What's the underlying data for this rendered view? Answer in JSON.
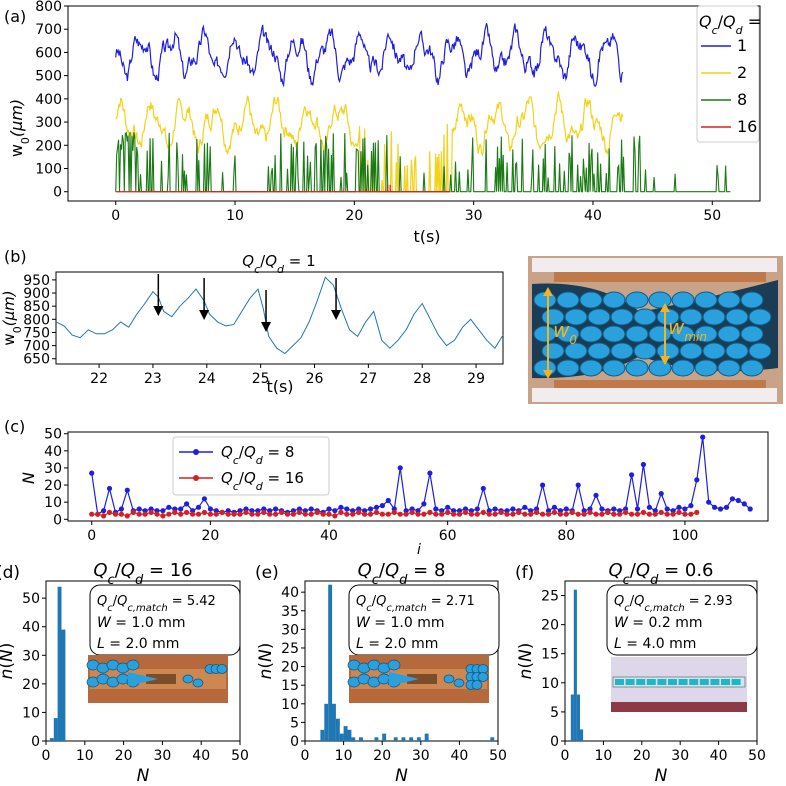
{
  "colors": {
    "blue": "#1f1fe0",
    "yellow": "#f2d21a",
    "green": "#1a7a14",
    "red": "#d62020",
    "mpl": "#1f77b4",
    "arrow_w": "#f3b323"
  },
  "chart_data": [
    {
      "id": "a",
      "panel_label": "(a)",
      "type": "line",
      "xlabel": "t(s)",
      "ylabel": "w0(μm)",
      "ylabel_main": "w",
      "ylabel_sub": "0",
      "ylabel_rest": "(μm)",
      "xlim": [
        -4,
        54
      ],
      "ylim": [
        -40,
        800
      ],
      "xticks": [
        0,
        10,
        20,
        30,
        40,
        50
      ],
      "yticks": [
        0,
        100,
        200,
        300,
        400,
        500,
        600,
        700,
        800
      ],
      "legend": {
        "title": "Qc/Qd =",
        "position": "top-right",
        "entries": [
          "1",
          "2",
          "8",
          "16"
        ]
      },
      "series": [
        {
          "name": "1",
          "color": "#1f1fe0",
          "t_start": 0,
          "t_end": 42.5,
          "base": 590,
          "amp": 105,
          "min": 380,
          "max": 775,
          "seed": 3
        },
        {
          "name": "2",
          "color": "#f2d21a",
          "t_start": 0,
          "t_end": 42.5,
          "base": 290,
          "amp": 110,
          "min": 0,
          "max": 520,
          "seed": 7,
          "gaps": [
            [
              20.5,
              28.2
            ]
          ]
        },
        {
          "name": "8",
          "color": "#1a7a14",
          "t_start": 0,
          "t_end": 51.5,
          "base": 0,
          "spikes": true,
          "seed": 11
        },
        {
          "name": "16",
          "color": "#d62020",
          "t_start": 0,
          "t_end": 28,
          "base": 0,
          "spikes_at": [
            22.8,
            23.0
          ]
        }
      ]
    },
    {
      "id": "b",
      "panel_label": "(b)",
      "type": "line",
      "title": "Qc/Qd = 1",
      "xlabel": "t(s)",
      "ylabel": "w0(μm)",
      "xlim": [
        21.2,
        29.5
      ],
      "ylim": [
        630,
        980
      ],
      "xticks": [
        22,
        23,
        24,
        25,
        26,
        27,
        28,
        29
      ],
      "yticks": [
        650,
        700,
        750,
        800,
        850,
        900,
        950
      ],
      "arrows_at": [
        23.1,
        23.95,
        25.1,
        26.4
      ],
      "inset_labels": [
        "w0",
        "wmin"
      ],
      "x": [
        21.2,
        21.35,
        21.5,
        21.65,
        21.8,
        21.95,
        22.1,
        22.25,
        22.4,
        22.55,
        22.7,
        22.85,
        23.0,
        23.1,
        23.2,
        23.35,
        23.5,
        23.65,
        23.8,
        23.95,
        24.05,
        24.2,
        24.35,
        24.5,
        24.65,
        24.8,
        24.95,
        25.05,
        25.15,
        25.3,
        25.45,
        25.6,
        25.75,
        25.9,
        26.05,
        26.2,
        26.35,
        26.5,
        26.65,
        26.8,
        26.95,
        27.1,
        27.25,
        27.4,
        27.55,
        27.7,
        27.85,
        28.0,
        28.15,
        28.3,
        28.45,
        28.6,
        28.75,
        28.9,
        29.05,
        29.2,
        29.35,
        29.5
      ],
      "y": [
        790,
        775,
        740,
        730,
        760,
        745,
        745,
        760,
        790,
        770,
        820,
        860,
        905,
        885,
        830,
        810,
        850,
        880,
        915,
        870,
        820,
        790,
        775,
        780,
        830,
        880,
        915,
        840,
        735,
        690,
        670,
        700,
        730,
        790,
        870,
        960,
        930,
        840,
        760,
        735,
        790,
        830,
        720,
        690,
        720,
        760,
        820,
        860,
        800,
        740,
        700,
        720,
        770,
        800,
        760,
        720,
        690,
        740
      ]
    },
    {
      "id": "c",
      "panel_label": "(c)",
      "type": "line",
      "xlabel": "i",
      "ylabel": "N",
      "xlim": [
        -4,
        114
      ],
      "ylim": [
        -1,
        51
      ],
      "xticks": [
        0,
        20,
        40,
        60,
        80,
        100
      ],
      "yticks": [
        0,
        10,
        20,
        30,
        40,
        50
      ],
      "legend": {
        "position": "upper-left",
        "entries": [
          "Qc/Qd = 8",
          "Qc/Qd = 16"
        ]
      },
      "series": [
        {
          "name": "Qc/Qd = 8",
          "color": "#1f1fe0",
          "values": [
            27,
            3,
            5,
            18,
            4,
            6,
            17,
            5,
            6,
            5,
            6,
            5,
            5,
            7,
            6,
            6,
            9,
            5,
            7,
            12,
            6,
            5,
            4,
            5,
            4,
            5,
            6,
            5,
            5,
            6,
            5,
            6,
            5,
            4,
            5,
            6,
            5,
            6,
            5,
            4,
            6,
            5,
            7,
            6,
            5,
            6,
            5,
            6,
            7,
            8,
            11,
            6,
            30,
            5,
            6,
            5,
            9,
            27,
            6,
            5,
            7,
            5,
            5,
            6,
            5,
            6,
            18,
            5,
            6,
            5,
            5,
            6,
            5,
            7,
            5,
            6,
            20,
            5,
            7,
            5,
            6,
            5,
            20,
            5,
            6,
            14,
            6,
            5,
            6,
            5,
            6,
            26,
            6,
            32,
            7,
            5,
            15,
            6,
            5,
            7,
            6,
            8,
            23,
            48,
            10,
            7,
            6,
            7,
            12,
            11,
            9,
            6
          ]
        },
        {
          "name": "Qc/Qd = 16",
          "color": "#d62020",
          "values": [
            3,
            3,
            2,
            4,
            3,
            3,
            2,
            4,
            3,
            3,
            4,
            3,
            2,
            3,
            4,
            3,
            4,
            3,
            3,
            4,
            3,
            3,
            4,
            3,
            3,
            3,
            4,
            3,
            3,
            4,
            3,
            3,
            4,
            3,
            3,
            4,
            3,
            3,
            4,
            3,
            3,
            2,
            4,
            3,
            3,
            4,
            3,
            3,
            4,
            3,
            3,
            4,
            3,
            3,
            4,
            3,
            3,
            4,
            3,
            3,
            4,
            3,
            3,
            4,
            3,
            3,
            4,
            3,
            3,
            4,
            3,
            3,
            4,
            3,
            3,
            4,
            3,
            3,
            4,
            3,
            3,
            4,
            3,
            3,
            4,
            3,
            3,
            4,
            3,
            3,
            4,
            3,
            3,
            4,
            3,
            3,
            4,
            3,
            3,
            4,
            3,
            3,
            4
          ]
        }
      ]
    },
    {
      "id": "d",
      "panel_label": "(d)",
      "type": "bar",
      "title": "Qc/Qd = 16",
      "xlabel": "N",
      "ylabel": "n(N)",
      "xlim": [
        0,
        50
      ],
      "ylim": [
        0,
        56
      ],
      "xticks": [
        0,
        10,
        20,
        30,
        40,
        50
      ],
      "yticks": [
        0,
        10,
        20,
        30,
        40,
        50
      ],
      "bin_width": 1,
      "bins": [
        1,
        2,
        3,
        4
      ],
      "values": [
        1,
        8,
        54,
        39
      ],
      "textbox": [
        "Qc/Qc,match = 5.42",
        "W = 1.0 mm",
        "L = 2.0 mm"
      ],
      "color": "#1f77b4"
    },
    {
      "id": "e",
      "panel_label": "(e)",
      "type": "bar",
      "title": "Qc/Qd = 8",
      "xlabel": "N",
      "ylabel": "n(N)",
      "xlim": [
        0,
        50
      ],
      "ylim": [
        0,
        43
      ],
      "xticks": [
        0,
        10,
        20,
        30,
        40,
        50
      ],
      "yticks": [
        0,
        5,
        10,
        15,
        20,
        25,
        30,
        35,
        40
      ],
      "bin_width": 1,
      "bins": [
        4,
        5,
        6,
        7,
        8,
        9,
        10,
        11,
        12,
        14,
        18,
        20,
        23,
        25,
        27,
        29,
        31,
        48
      ],
      "values": [
        3,
        10,
        42,
        10,
        6,
        2,
        4,
        3,
        1,
        1,
        1,
        2,
        1,
        1,
        1,
        1,
        2,
        1
      ],
      "textbox": [
        "Qc/Qc,match = 2.71",
        "W = 1.0 mm",
        "L = 2.0 mm"
      ],
      "color": "#1f77b4"
    },
    {
      "id": "f",
      "panel_label": "(f)",
      "type": "bar",
      "title": "Qc/Qd = 0.6",
      "xlabel": "N",
      "ylabel": "n(N)",
      "xlim": [
        0,
        50
      ],
      "ylim": [
        0,
        27.5
      ],
      "xticks": [
        0,
        10,
        20,
        30,
        40,
        50
      ],
      "yticks": [
        0,
        5,
        10,
        15,
        20,
        25
      ],
      "bin_width": 0.8,
      "bins": [
        1.5,
        2.3,
        3.1,
        3.9
      ],
      "values": [
        8,
        26,
        8,
        2
      ],
      "textbox": [
        "Qc/Qc,match = 2.93",
        "W = 0.2 mm",
        "L = 4.0 mm"
      ],
      "color": "#1f77b4"
    }
  ]
}
